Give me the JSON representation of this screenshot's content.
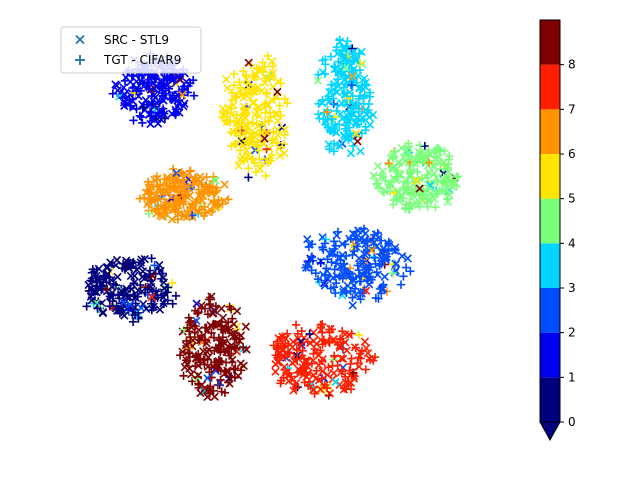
{
  "chart_data": {
    "type": "scatter",
    "title": "",
    "xlabel": "",
    "ylabel": "",
    "axes_visible": false,
    "grid": false,
    "legend_position": "top-left",
    "series": [
      {
        "name": "SRC - STL9",
        "marker": "x"
      },
      {
        "name": "TGT - CIFAR9",
        "marker": "+"
      }
    ],
    "legend_marker_color": "#1f77b4",
    "colorbar": {
      "ticks": [
        "0",
        "1",
        "2",
        "3",
        "4",
        "5",
        "6",
        "7",
        "8"
      ],
      "range": [
        0,
        8
      ],
      "extend": "min",
      "colors": [
        "#00007f",
        "#0000f1",
        "#004dff",
        "#00d5ff",
        "#7aff7d",
        "#ffe500",
        "#ff9400",
        "#ff1e00",
        "#7f0000"
      ]
    },
    "clusters": [
      {
        "label": 0,
        "color": "#00007f",
        "cx": -2.6,
        "cy": -0.9,
        "rx": 0.72,
        "ry": 0.46
      },
      {
        "label": 1,
        "color": "#0000f1",
        "cx": -2.2,
        "cy": 2.3,
        "rx": 0.58,
        "ry": 0.5
      },
      {
        "label": 2,
        "color": "#004dff",
        "cx": 1.2,
        "cy": -0.5,
        "rx": 0.88,
        "ry": 0.54
      },
      {
        "label": 3,
        "color": "#00d5ff",
        "cx": 1.0,
        "cy": 2.2,
        "rx": 0.42,
        "ry": 0.92
      },
      {
        "label": 4,
        "color": "#7aff7d",
        "cx": 2.2,
        "cy": 0.9,
        "rx": 0.65,
        "ry": 0.52
      },
      {
        "label": 5,
        "color": "#ffe500",
        "cx": -0.5,
        "cy": 1.9,
        "rx": 0.52,
        "ry": 0.95
      },
      {
        "label": 6,
        "color": "#ff9400",
        "cx": -1.7,
        "cy": 0.6,
        "rx": 0.72,
        "ry": 0.38
      },
      {
        "label": 7,
        "color": "#ff1e00",
        "cx": 0.6,
        "cy": -2.05,
        "rx": 0.85,
        "ry": 0.56
      },
      {
        "label": 8,
        "color": "#7f0000",
        "cx": -1.2,
        "cy": -1.85,
        "rx": 0.55,
        "ry": 0.78
      }
    ],
    "xlim": [
      -3.6,
      3.6
    ],
    "ylim": [
      -3.2,
      3.2
    ]
  }
}
